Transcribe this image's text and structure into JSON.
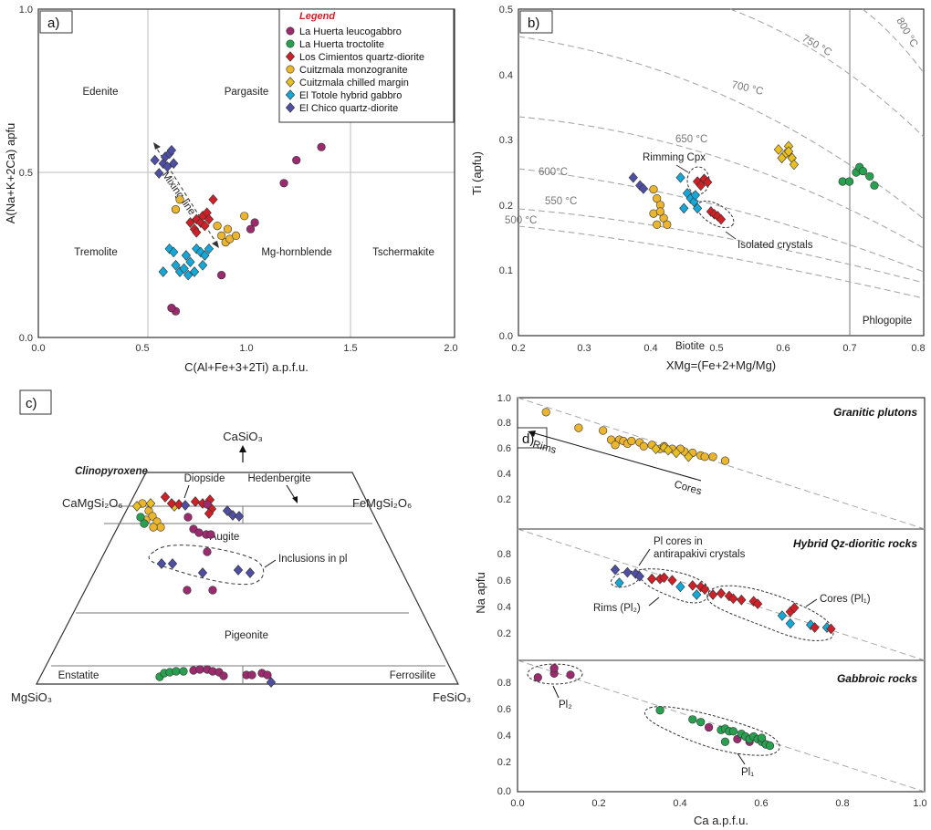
{
  "colors": {
    "leucogabbro": "#9b2a6e",
    "troctolite": "#27a050",
    "cimientos": "#cf2027",
    "monzogranite": "#ecb52e",
    "chilled": "#e9c023",
    "totole": "#14a8d8",
    "chico": "#4e4fa4",
    "frame": "#333333",
    "grid": "#b5b5b5",
    "dash": "#999999"
  },
  "legend": {
    "title": "Legend",
    "items": [
      {
        "label": "La Huerta leucogabbro",
        "color": "#9b2a6e",
        "marker": "circle"
      },
      {
        "label": "La Huerta troctolite",
        "color": "#27a050",
        "marker": "circle"
      },
      {
        "label": "Los Cimientos quartz-diorite",
        "color": "#cf2027",
        "marker": "diamond"
      },
      {
        "label": "Cuitzmala monzogranite",
        "color": "#ecb52e",
        "marker": "circle"
      },
      {
        "label": "Cuitzmala chilled margin",
        "color": "#e9c023",
        "marker": "diamond"
      },
      {
        "label": "El Totole hybrid gabbro",
        "color": "#14a8d8",
        "marker": "diamond"
      },
      {
        "label": "El Chico quartz-diorite",
        "color": "#4e4fa4",
        "marker": "diamond"
      }
    ]
  },
  "panels": {
    "a": {
      "label": "a)"
    },
    "b": {
      "label": "b)"
    },
    "c": {
      "label": "c)"
    },
    "d": {
      "label": "d)"
    }
  },
  "chart_data": [
    {
      "panel": "a",
      "type": "scatter",
      "xlabel": "C(Al+Fe+3+2Ti) a.p.f.u.",
      "ylabel": "A(Na+K+2Ca) apfu",
      "xlim": [
        0,
        2.0
      ],
      "ylim": [
        0,
        1.0
      ],
      "xticks": [
        "0.0",
        "0.5",
        "1.0",
        "1.5",
        "2.0"
      ],
      "yticks": [
        "0.0",
        "0.5",
        "1.0"
      ],
      "fields": [
        "Edenite",
        "Pargasite",
        "Tremolite",
        "Mg-hornblende",
        "Tschermakite"
      ],
      "annotation": "Mixing-line",
      "series": [
        {
          "name": "La Huerta leucogabbro",
          "points": [
            [
              1.36,
              0.58
            ],
            [
              1.24,
              0.54
            ],
            [
              1.18,
              0.47
            ],
            [
              1.04,
              0.35
            ],
            [
              1.02,
              0.33
            ],
            [
              0.88,
              0.19
            ],
            [
              0.66,
              0.08
            ],
            [
              0.64,
              0.09
            ]
          ]
        },
        {
          "name": "Los Cimientos quartz-diorite",
          "points": [
            [
              0.73,
              0.35
            ],
            [
              0.75,
              0.33
            ],
            [
              0.76,
              0.36
            ],
            [
              0.78,
              0.35
            ],
            [
              0.79,
              0.37
            ],
            [
              0.8,
              0.34
            ],
            [
              0.81,
              0.38
            ],
            [
              0.82,
              0.36
            ],
            [
              0.76,
              0.32
            ],
            [
              0.84,
              0.42
            ]
          ]
        },
        {
          "name": "Cuitzmala monzogranite",
          "points": [
            [
              0.68,
              0.42
            ],
            [
              0.66,
              0.39
            ],
            [
              0.86,
              0.34
            ],
            [
              0.88,
              0.31
            ],
            [
              0.9,
              0.29
            ],
            [
              0.92,
              0.3
            ],
            [
              0.91,
              0.33
            ],
            [
              0.95,
              0.31
            ],
            [
              0.99,
              0.37
            ]
          ]
        },
        {
          "name": "El Totole hybrid gabbro",
          "points": [
            [
              0.63,
              0.27
            ],
            [
              0.65,
              0.26
            ],
            [
              0.66,
              0.22
            ],
            [
              0.68,
              0.2
            ],
            [
              0.7,
              0.21
            ],
            [
              0.72,
              0.19
            ],
            [
              0.73,
              0.23
            ],
            [
              0.75,
              0.2
            ],
            [
              0.76,
              0.27
            ],
            [
              0.78,
              0.26
            ],
            [
              0.8,
              0.25
            ],
            [
              0.82,
              0.27
            ],
            [
              0.6,
              0.2
            ],
            [
              0.71,
              0.25
            ],
            [
              0.79,
              0.22
            ]
          ]
        },
        {
          "name": "El Chico quartz-diorite",
          "points": [
            [
              0.58,
              0.5
            ],
            [
              0.6,
              0.53
            ],
            [
              0.61,
              0.55
            ],
            [
              0.62,
              0.52
            ],
            [
              0.63,
              0.56
            ],
            [
              0.64,
              0.57
            ],
            [
              0.65,
              0.53
            ],
            [
              0.56,
              0.54
            ]
          ]
        }
      ]
    },
    {
      "panel": "b",
      "type": "scatter",
      "xlabel": "XMg=(Fe+2+Mg/Mg)",
      "ylabel": "Ti (apfu)",
      "xlim": [
        0.2,
        0.8
      ],
      "ylim": [
        0.0,
        0.5
      ],
      "xticks": [
        "0.2",
        "0.3",
        "0.4",
        "0.5",
        "0.6",
        "0.7",
        "0.8"
      ],
      "yticks": [
        "0.0",
        "0.1",
        "0.2",
        "0.3",
        "0.4",
        "0.5"
      ],
      "fields": [
        "Biotite",
        "Phlogopite"
      ],
      "isotherms": [
        "500 °C",
        "550 °C",
        "600°C",
        "650 °C",
        "700 °C",
        "750 °C",
        "800 °C"
      ],
      "annotations": [
        "Rimming Cpx",
        "Isolated crystals"
      ],
      "series": [
        {
          "name": "La Huerta troctolite",
          "points": [
            [
              0.68,
              0.236
            ],
            [
              0.69,
              0.236
            ],
            [
              0.7,
              0.25
            ],
            [
              0.705,
              0.258
            ],
            [
              0.71,
              0.252
            ],
            [
              0.72,
              0.244
            ],
            [
              0.727,
              0.23
            ]
          ]
        },
        {
          "name": "Los Cimientos quartz-diorite",
          "points": [
            [
              0.465,
              0.236
            ],
            [
              0.47,
              0.23
            ],
            [
              0.475,
              0.24
            ],
            [
              0.48,
              0.235
            ],
            [
              0.485,
              0.19
            ],
            [
              0.49,
              0.186
            ],
            [
              0.495,
              0.183
            ],
            [
              0.5,
              0.178
            ]
          ]
        },
        {
          "name": "Cuitzmala monzogranite",
          "points": [
            [
              0.4,
              0.224
            ],
            [
              0.405,
              0.21
            ],
            [
              0.41,
              0.2
            ],
            [
              0.4,
              0.187
            ],
            [
              0.405,
              0.17
            ],
            [
              0.415,
              0.18
            ],
            [
              0.42,
              0.17
            ],
            [
              0.41,
              0.19
            ]
          ]
        },
        {
          "name": "Cuitzmala chilled margin",
          "points": [
            [
              0.585,
              0.285
            ],
            [
              0.595,
              0.278
            ],
            [
              0.6,
              0.29
            ],
            [
              0.605,
              0.272
            ],
            [
              0.608,
              0.262
            ],
            [
              0.59,
              0.272
            ],
            [
              0.6,
              0.282
            ]
          ]
        },
        {
          "name": "El Totole hybrid gabbro",
          "points": [
            [
              0.44,
              0.242
            ],
            [
              0.445,
              0.195
            ],
            [
              0.45,
              0.218
            ],
            [
              0.455,
              0.21
            ],
            [
              0.46,
              0.205
            ],
            [
              0.462,
              0.215
            ],
            [
              0.465,
              0.195
            ]
          ]
        },
        {
          "name": "El Chico quartz-diorite",
          "points": [
            [
              0.37,
              0.242
            ],
            [
              0.38,
              0.23
            ],
            [
              0.385,
              0.225
            ]
          ]
        }
      ]
    },
    {
      "panel": "c",
      "type": "ternary",
      "vertices": {
        "top": "CaSiO₃",
        "left": "MgSiO₃",
        "right": "FeSiO₃"
      },
      "title": "Clinopyroxene",
      "endmembers": {
        "cpx_left": "CaMgSi₂O₆",
        "cpx_right": "FeMgSi₂O₆"
      },
      "fields": [
        "Diopside",
        "Hedenbergite",
        "Augite",
        "Pigeonite",
        "Enstatite",
        "Ferrosilite"
      ],
      "annotation": "Inclusions in pl"
    },
    {
      "panel": "d",
      "type": "scatter",
      "xlabel": "Ca a.p.f.u.",
      "ylabel": "Na apfu",
      "xlim": [
        0.0,
        1.0
      ],
      "xticks": [
        "0.0",
        "0.2",
        "0.4",
        "0.6",
        "0.8",
        "1.0"
      ],
      "subpanels": [
        {
          "title": "Granitic plutons",
          "ylim": [
            0.0,
            1.0
          ],
          "yticks": [
            "0.2",
            "0.4",
            "0.6",
            "0.8",
            "1.0"
          ],
          "annotations": [
            "Rims",
            "Cores"
          ],
          "series": [
            {
              "name": "Cuitzmala monzogranite",
              "points": [
                [
                  0.07,
                  0.89
                ],
                [
                  0.15,
                  0.77
                ],
                [
                  0.21,
                  0.75
                ],
                [
                  0.23,
                  0.68
                ],
                [
                  0.25,
                  0.68
                ],
                [
                  0.26,
                  0.67
                ],
                [
                  0.27,
                  0.65
                ],
                [
                  0.28,
                  0.67
                ],
                [
                  0.3,
                  0.66
                ],
                [
                  0.31,
                  0.63
                ],
                [
                  0.33,
                  0.64
                ],
                [
                  0.35,
                  0.61
                ],
                [
                  0.36,
                  0.63
                ],
                [
                  0.38,
                  0.61
                ],
                [
                  0.41,
                  0.59
                ],
                [
                  0.43,
                  0.58
                ],
                [
                  0.45,
                  0.56
                ],
                [
                  0.46,
                  0.55
                ],
                [
                  0.48,
                  0.55
                ],
                [
                  0.51,
                  0.52
                ],
                [
                  0.24,
                  0.64
                ],
                [
                  0.4,
                  0.61
                ]
              ]
            },
            {
              "name": "Cuitzmala chilled margin",
              "points": [
                [
                  0.34,
                  0.61
                ],
                [
                  0.36,
                  0.62
                ],
                [
                  0.37,
                  0.6
                ],
                [
                  0.39,
                  0.58
                ],
                [
                  0.42,
                  0.55
                ]
              ]
            }
          ]
        },
        {
          "title": "Hybrid Qz-dioritic rocks",
          "ylim": [
            0.0,
            1.0
          ],
          "yticks": [
            "0.2",
            "0.4",
            "0.6",
            "0.8"
          ],
          "annotations": [
            "Pl cores in antirapakivi crystals",
            "Rims (Pl₂)",
            "Cores (Pl₁)"
          ],
          "series": [
            {
              "name": "El Chico quartz-diorite",
              "points": [
                [
                  0.24,
                  0.69
                ],
                [
                  0.27,
                  0.67
                ],
                [
                  0.29,
                  0.66
                ],
                [
                  0.3,
                  0.64
                ],
                [
                  0.33,
                  0.62
                ]
              ]
            },
            {
              "name": "El Totole hybrid gabbro",
              "points": [
                [
                  0.25,
                  0.59
                ],
                [
                  0.4,
                  0.56
                ],
                [
                  0.44,
                  0.5
                ],
                [
                  0.65,
                  0.34
                ],
                [
                  0.67,
                  0.28
                ],
                [
                  0.72,
                  0.27
                ],
                [
                  0.76,
                  0.25
                ]
              ]
            },
            {
              "name": "Los Cimientos quartz-diorite",
              "points": [
                [
                  0.33,
                  0.62
                ],
                [
                  0.35,
                  0.62
                ],
                [
                  0.36,
                  0.63
                ],
                [
                  0.38,
                  0.61
                ],
                [
                  0.43,
                  0.57
                ],
                [
                  0.45,
                  0.56
                ],
                [
                  0.46,
                  0.54
                ],
                [
                  0.48,
                  0.5
                ],
                [
                  0.5,
                  0.51
                ],
                [
                  0.52,
                  0.49
                ],
                [
                  0.53,
                  0.47
                ],
                [
                  0.55,
                  0.46
                ],
                [
                  0.58,
                  0.45
                ],
                [
                  0.59,
                  0.43
                ],
                [
                  0.67,
                  0.37
                ],
                [
                  0.68,
                  0.4
                ],
                [
                  0.73,
                  0.25
                ],
                [
                  0.77,
                  0.24
                ]
              ]
            }
          ]
        },
        {
          "title": "Gabbroic rocks",
          "ylim": [
            0.0,
            1.0
          ],
          "yticks": [
            "0.0",
            "0.2",
            "0.4",
            "0.6",
            "0.8"
          ],
          "annotations": [
            "Pl₂",
            "Pl₁"
          ],
          "series": [
            {
              "name": "La Huerta leucogabbro",
              "points": [
                [
                  0.05,
                  0.87
                ],
                [
                  0.09,
                  0.9
                ],
                [
                  0.09,
                  0.94
                ],
                [
                  0.13,
                  0.89
                ],
                [
                  0.47,
                  0.49
                ],
                [
                  0.54,
                  0.4
                ],
                [
                  0.57,
                  0.38
                ]
              ]
            },
            {
              "name": "La Huerta troctolite",
              "points": [
                [
                  0.35,
                  0.62
                ],
                [
                  0.43,
                  0.55
                ],
                [
                  0.45,
                  0.53
                ],
                [
                  0.5,
                  0.47
                ],
                [
                  0.51,
                  0.48
                ],
                [
                  0.52,
                  0.46
                ],
                [
                  0.53,
                  0.46
                ],
                [
                  0.55,
                  0.44
                ],
                [
                  0.56,
                  0.42
                ],
                [
                  0.57,
                  0.4
                ],
                [
                  0.58,
                  0.42
                ],
                [
                  0.59,
                  0.4
                ],
                [
                  0.6,
                  0.38
                ],
                [
                  0.61,
                  0.36
                ],
                [
                  0.62,
                  0.35
                ],
                [
                  0.51,
                  0.38
                ],
                [
                  0.6,
                  0.41
                ]
              ]
            }
          ]
        }
      ]
    }
  ]
}
